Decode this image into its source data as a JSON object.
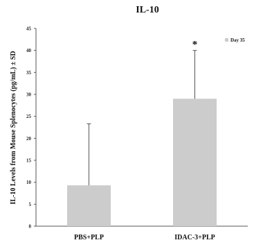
{
  "chart_data": {
    "type": "bar",
    "title": "IL-10",
    "ylabel": "IL-10 Levels from Mouse Splenocytes (pg/mL) ± SD",
    "xlabel": "",
    "categories": [
      "PBS+PLP",
      "IDAC-3+PLP"
    ],
    "series": [
      {
        "name": "Day 35",
        "values": [
          9.3,
          29.0
        ],
        "error_upper": [
          23.3,
          40.0
        ]
      }
    ],
    "ylim": [
      0,
      45
    ],
    "yticks": [
      "0",
      "5",
      "10",
      "15",
      "20",
      "25",
      "30",
      "35",
      "40",
      "45"
    ],
    "annotations": [
      {
        "category": "IDAC-3+PLP",
        "text": "*"
      }
    ],
    "legend": {
      "position": "top-right"
    },
    "grid": false,
    "colors": {
      "bar": "#cccccc",
      "axis": "#555555",
      "error": "#555555"
    }
  }
}
